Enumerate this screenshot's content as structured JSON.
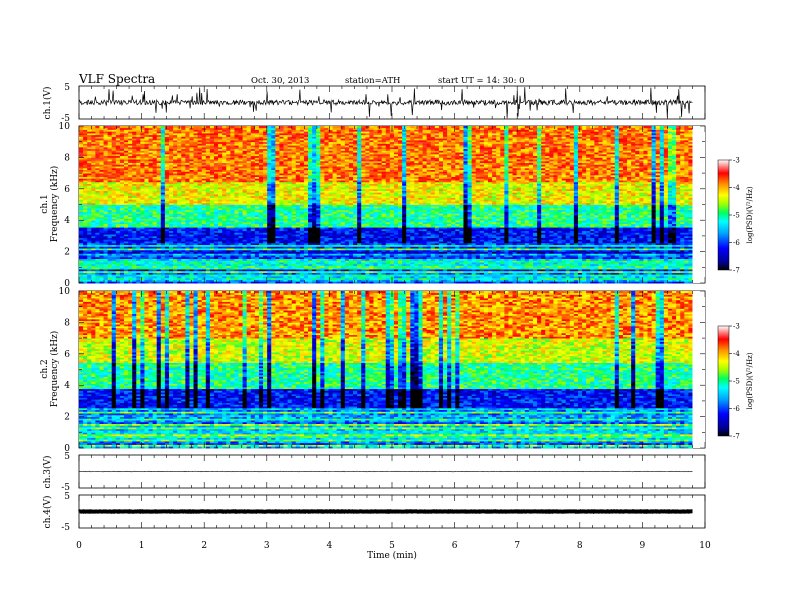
{
  "header": {
    "title": "VLF  Spectra",
    "date": "Oct. 30, 2013",
    "station": "station=ATH",
    "start": "start  UT  =    14: 30: 0"
  },
  "chart_data": [
    {
      "type": "line",
      "panel": "ch1",
      "ylabel": "ch.1(V)",
      "yticks": [
        "5",
        "-5"
      ],
      "ylim": [
        -5,
        5
      ],
      "note": "noisy waveform around 0 V with spikes"
    },
    {
      "type": "heatmap",
      "panel": "spec1",
      "ylabel": "Frequency  (kHz)",
      "channel_label": "ch.1",
      "yticks": [
        "0",
        "2",
        "4",
        "6",
        "8",
        "10"
      ],
      "ylim": [
        0,
        10
      ],
      "colorbar": {
        "label": "log(PSD)(V²/Hz)",
        "ticks": [
          "-3",
          "-4",
          "-5",
          "-6",
          "-7"
        ],
        "range": [
          -7,
          -3
        ]
      },
      "bands": [
        {
          "from": 0,
          "to": 2.6,
          "logpsd": -5.6
        },
        {
          "from": 2.6,
          "to": 3.6,
          "logpsd": -6.2
        },
        {
          "from": 3.6,
          "to": 5.0,
          "logpsd": -5.0
        },
        {
          "from": 5.0,
          "to": 6.5,
          "logpsd": -4.3
        },
        {
          "from": 6.5,
          "to": 10,
          "logpsd": -3.8
        }
      ]
    },
    {
      "type": "heatmap",
      "panel": "spec2",
      "ylabel": "Frequency  (kHz)",
      "channel_label": "ch.2",
      "yticks": [
        "0",
        "2",
        "4",
        "6",
        "8",
        "10"
      ],
      "ylim": [
        0,
        10
      ],
      "colorbar": {
        "label": "log(PSD)(V²/Hz)",
        "ticks": [
          "-3",
          "-4",
          "-5",
          "-6",
          "-7"
        ],
        "range": [
          -7,
          -3
        ]
      },
      "bands": [
        {
          "from": 0,
          "to": 2.6,
          "logpsd": -5.2
        },
        {
          "from": 2.6,
          "to": 3.8,
          "logpsd": -6.2
        },
        {
          "from": 3.8,
          "to": 5.5,
          "logpsd": -5.0
        },
        {
          "from": 5.5,
          "to": 7.0,
          "logpsd": -4.4
        },
        {
          "from": 7.0,
          "to": 10,
          "logpsd": -3.9
        }
      ]
    },
    {
      "type": "line",
      "panel": "ch3",
      "ylabel": "ch.3(V)",
      "yticks": [
        "5",
        "-5"
      ],
      "ylim": [
        -5,
        5
      ],
      "note": "flat trace near 0 V"
    },
    {
      "type": "line",
      "panel": "ch4",
      "ylabel": "ch.4(V)",
      "yticks": [
        "5",
        "-5"
      ],
      "ylim": [
        -5,
        5
      ],
      "note": "thick flat trace near 0 V"
    }
  ],
  "xaxis": {
    "label": "Time  (min)",
    "ticks": [
      "0",
      "1",
      "2",
      "3",
      "4",
      "5",
      "6",
      "7",
      "8",
      "9",
      "10"
    ],
    "xlim": [
      0,
      10
    ],
    "data_end": 9.8
  },
  "colors": {
    "frame": "#000000",
    "background": "#ffffff"
  }
}
